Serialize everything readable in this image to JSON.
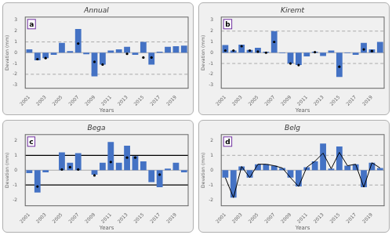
{
  "chart_data": [
    {
      "type": "bar",
      "title": "Annual",
      "annotations": [
        "a"
      ],
      "x_label": "Years",
      "y_label": "Devation (mm)",
      "categories": [
        "2001",
        null,
        "2003",
        null,
        "2005",
        null,
        "2007",
        null,
        "2009",
        null,
        "2011",
        null,
        "2013",
        null,
        "2015",
        null,
        "2017",
        null,
        "2019",
        null
      ],
      "series": [
        {
          "type": "bar",
          "color": "#4472C4",
          "values": [
            0.3,
            -0.7,
            -0.5,
            -0.2,
            0.9,
            0.15,
            2.2,
            -0.15,
            -2.2,
            -1.1,
            0.2,
            0.3,
            0.55,
            -0.2,
            1.0,
            -1.1,
            0.1,
            0.55,
            0.6,
            0.65
          ]
        },
        {
          "type": "scatter",
          "color": "#000000",
          "marker": "circle",
          "values": [
            null,
            -0.6,
            -0.5,
            null,
            null,
            null,
            0.85,
            null,
            -0.85,
            -1.1,
            null,
            null,
            -0.1,
            null,
            -0.45,
            -0.45,
            null,
            null,
            null,
            null
          ]
        }
      ],
      "hlines": [
        {
          "y": 1.0,
          "color": "#999999",
          "line_style": "dashed"
        },
        {
          "y": -2.0,
          "color": "#999999",
          "line_style": "dashed"
        },
        {
          "y": 0,
          "color": "#999999",
          "line_style": "solid"
        }
      ],
      "ylim": [
        -3.3,
        3.3
      ],
      "yticks": [
        -3,
        -2,
        -1,
        0,
        1,
        2,
        3
      ],
      "grid": false
    },
    {
      "type": "bar",
      "title": "Kiremt",
      "annotations": [
        "b"
      ],
      "x_label": "Years",
      "y_label": "Devation (mm)",
      "categories": [
        "2001",
        null,
        "2003",
        null,
        "2005",
        null,
        "2007",
        null,
        "2009",
        null,
        "2011",
        null,
        "2013",
        null,
        "2015",
        null,
        "2017",
        null,
        "2019",
        null
      ],
      "series": [
        {
          "type": "bar",
          "color": "#4472C4",
          "values": [
            0.7,
            0.2,
            0.75,
            0.25,
            0.45,
            0.1,
            2.0,
            -0.05,
            -1.0,
            -1.15,
            -0.35,
            0.1,
            -0.3,
            0.2,
            -2.25,
            -0.05,
            -0.2,
            0.9,
            0.3,
            1.0
          ]
        },
        {
          "type": "scatter",
          "color": "#000000",
          "marker": "circle",
          "values": [
            0.2,
            0.2,
            0.6,
            0.2,
            0.1,
            0.0,
            1.0,
            null,
            -1.0,
            -1.15,
            null,
            0.05,
            null,
            null,
            -1.3,
            null,
            null,
            0.3,
            0.15,
            null
          ]
        }
      ],
      "hlines": [
        {
          "y": 2.0,
          "color": "#999999",
          "line_style": "dashed"
        },
        {
          "y": -1.0,
          "color": "#999999",
          "line_style": "dashed"
        },
        {
          "y": 0,
          "color": "#999999",
          "line_style": "solid"
        }
      ],
      "ylim": [
        -3.3,
        3.3
      ],
      "yticks": [
        -3,
        -2,
        -1,
        0,
        1,
        2,
        3
      ],
      "grid": false
    },
    {
      "type": "bar",
      "title": "Bega",
      "annotations": [
        "c"
      ],
      "x_label": "Years",
      "y_label": "Devation (mm)",
      "categories": [
        "2001",
        null,
        "2003",
        null,
        "2005",
        null,
        "2007",
        null,
        "2009",
        null,
        "2011",
        null,
        "2013",
        null,
        "2015",
        null,
        "2017",
        null,
        "2019",
        null
      ],
      "series": [
        {
          "type": "bar",
          "color": "#4472C4",
          "values": [
            -0.2,
            -1.5,
            -0.15,
            0.0,
            1.2,
            0.5,
            1.15,
            0.0,
            -0.3,
            0.5,
            1.9,
            0.5,
            1.65,
            0.95,
            0.6,
            -0.8,
            -1.15,
            0.1,
            0.5,
            -0.15
          ]
        },
        {
          "type": "scatter",
          "color": "#000000",
          "marker": "circle",
          "values": [
            null,
            -1.1,
            null,
            null,
            0.05,
            0.2,
            0.05,
            null,
            -0.35,
            null,
            0.55,
            null,
            0.85,
            0.85,
            null,
            null,
            -0.3,
            null,
            null,
            null
          ]
        }
      ],
      "hlines": [
        {
          "y": 1.0,
          "color": "#000000",
          "line_style": "solid"
        },
        {
          "y": -1.0,
          "color": "#000000",
          "line_style": "solid"
        },
        {
          "y": 0,
          "color": "#999999",
          "line_style": "solid"
        }
      ],
      "ylim": [
        -2.4,
        2.4
      ],
      "yticks": [
        -2,
        -1,
        0,
        1,
        2
      ],
      "grid": false
    },
    {
      "type": "bar",
      "title": "Belg",
      "annotations": [
        "d"
      ],
      "x_label": "Years",
      "y_label": "Devation (mm)",
      "categories": [
        "2001",
        null,
        "2003",
        null,
        "2005",
        null,
        "2007",
        null,
        "2009",
        null,
        "2011",
        null,
        "2013",
        null,
        "2015",
        null,
        "2017",
        null,
        "2019",
        null
      ],
      "series": [
        {
          "type": "bar",
          "color": "#4472C4",
          "values": [
            -0.5,
            -1.85,
            0.25,
            -0.5,
            0.4,
            0.4,
            0.3,
            0.15,
            -0.5,
            -1.1,
            0.2,
            0.6,
            1.8,
            0.1,
            1.6,
            0.3,
            0.4,
            -1.15,
            0.5,
            0.15
          ]
        },
        {
          "type": "line",
          "color": "#000000",
          "values": [
            -0.5,
            -1.85,
            0.25,
            -0.5,
            0.4,
            0.4,
            0.3,
            0.15,
            -0.5,
            -1.1,
            0.2,
            0.6,
            1.15,
            0.1,
            1.2,
            0.3,
            0.4,
            -1.15,
            0.5,
            0.15
          ]
        }
      ],
      "hlines": [
        {
          "y": 1.0,
          "color": "#999999",
          "line_style": "dashed"
        },
        {
          "y": -1.0,
          "color": "#999999",
          "line_style": "dashed"
        },
        {
          "y": 0,
          "color": "#999999",
          "line_style": "solid"
        }
      ],
      "ylim": [
        -2.4,
        2.4
      ],
      "yticks": [
        -2,
        -1,
        0,
        1,
        2
      ],
      "grid": false
    }
  ]
}
